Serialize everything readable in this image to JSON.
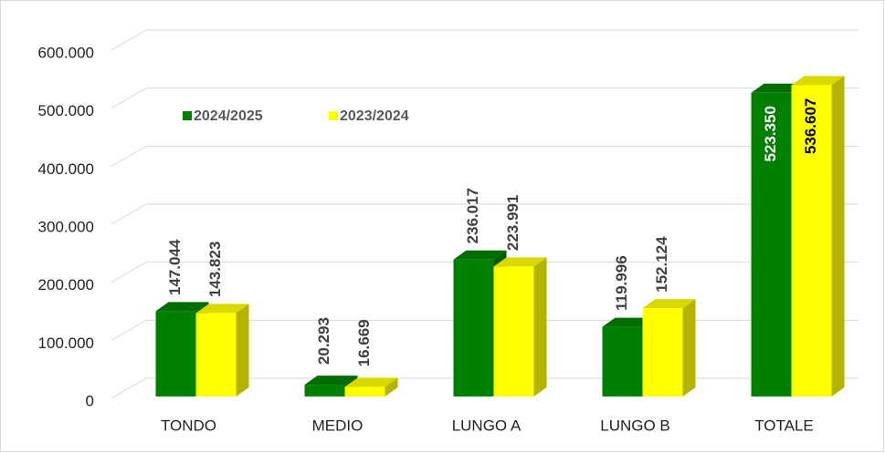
{
  "chart_data": {
    "type": "bar3d",
    "categories": [
      "TONDO",
      "MEDIO",
      "LUNGO A",
      "LUNGO B",
      "TOTALE"
    ],
    "series": [
      {
        "name": "2024/2025",
        "color": "#008000",
        "values": [
          147044,
          20293,
          236017,
          119996,
          523350
        ],
        "value_labels": [
          "147.044",
          "20.293",
          "236.017",
          "119.996",
          "523.350"
        ]
      },
      {
        "name": "2023/2024",
        "color": "#ffff00",
        "values": [
          143823,
          16669,
          223991,
          152124,
          536607
        ],
        "value_labels": [
          "143.823",
          "16.669",
          "223.991",
          "152.124",
          "536.607"
        ]
      }
    ],
    "ylim": [
      0,
      600000
    ],
    "yticks": [
      0,
      {
        "value": 100000,
        "label": "100.000"
      },
      {
        "value": 200000,
        "label": "200.000"
      },
      {
        "value": 300000,
        "label": "300.000"
      },
      {
        "value": 400000,
        "label": "400.000"
      },
      {
        "value": 500000,
        "label": "500.000"
      },
      {
        "value": 600000,
        "label": "600.000"
      }
    ],
    "grid": true,
    "legend": "top-left"
  }
}
